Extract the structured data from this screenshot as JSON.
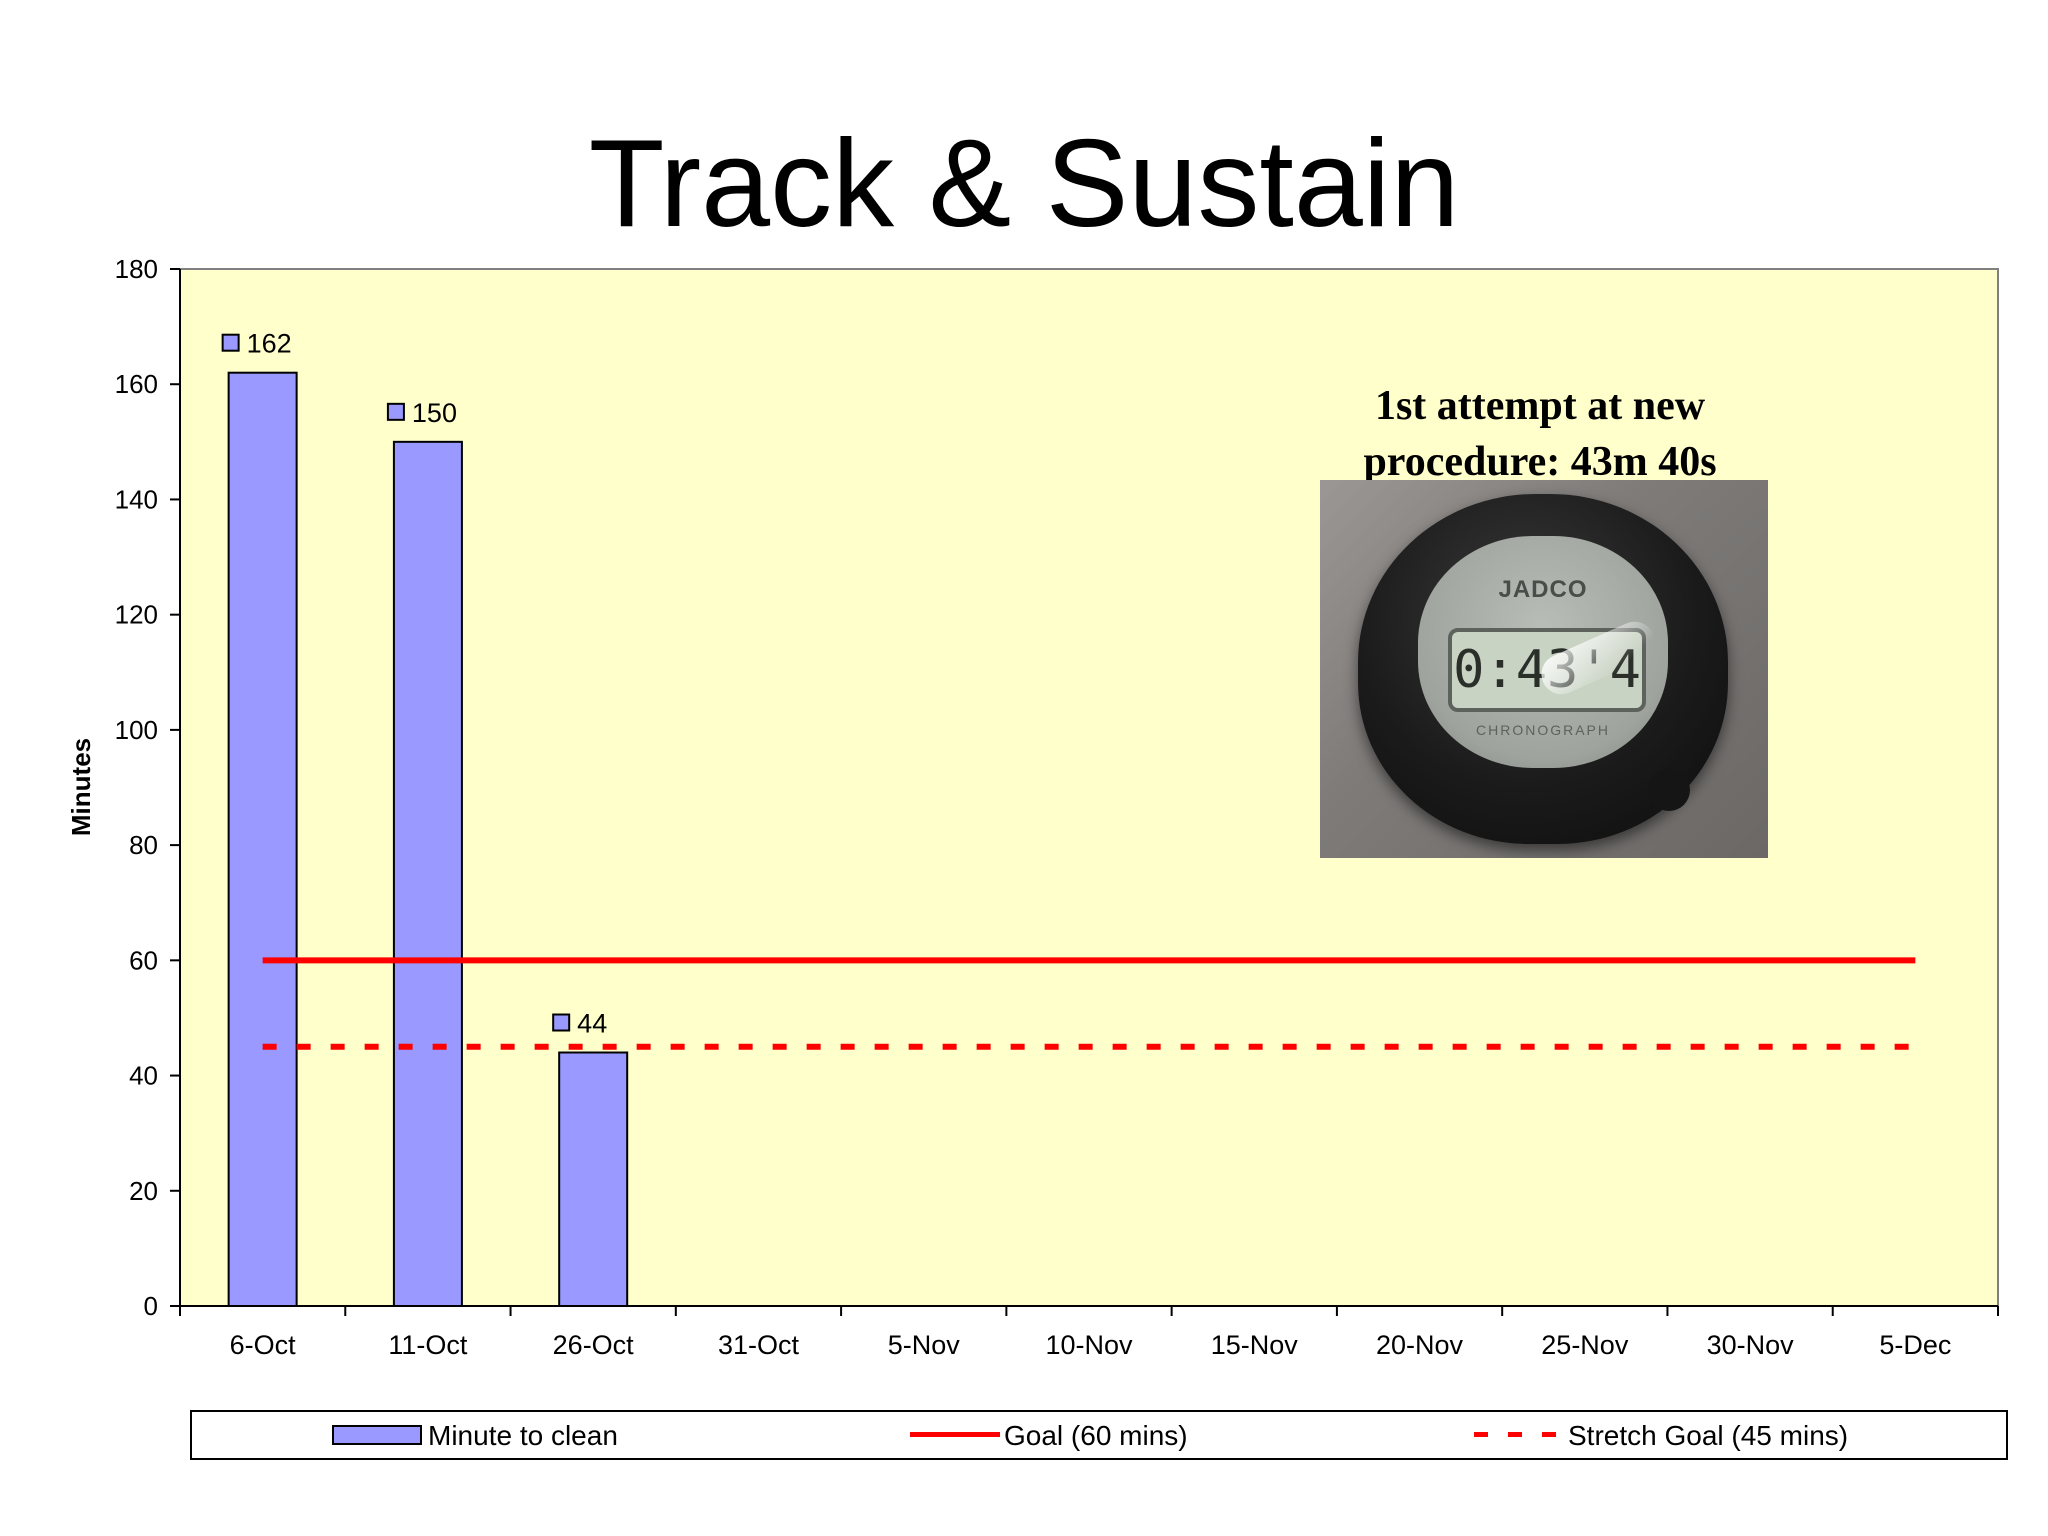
{
  "slide": {
    "title": "Track & Sustain"
  },
  "annotation": {
    "line1": "1st attempt at new",
    "line2": "procedure: 43m 40s"
  },
  "photo": {
    "brand": "JADCO",
    "readout": "0:43'4",
    "label": "CHRONOGRAPH"
  },
  "chart_data": {
    "type": "bar",
    "title": "",
    "ylabel": "Minutes",
    "xlabel": "",
    "ylim": [
      0,
      180
    ],
    "yticks": [
      0,
      20,
      40,
      60,
      80,
      100,
      120,
      140,
      160,
      180
    ],
    "categories": [
      "6-Oct",
      "11-Oct",
      "26-Oct",
      "31-Oct",
      "5-Nov",
      "10-Nov",
      "15-Nov",
      "20-Nov",
      "25-Nov",
      "30-Nov",
      "5-Dec"
    ],
    "series": [
      {
        "name": "Minute to clean",
        "type": "bar",
        "values": [
          162,
          150,
          44,
          null,
          null,
          null,
          null,
          null,
          null,
          null,
          null
        ],
        "color": "#9999ff"
      }
    ],
    "reference_lines": [
      {
        "name": "Goal (60 mins)",
        "value": 60,
        "style": "solid",
        "color": "#ff0000"
      },
      {
        "name": "Stretch Goal (45 mins)",
        "value": 45,
        "style": "dashed",
        "color": "#ff0000"
      }
    ],
    "data_labels": [
      162,
      150,
      44
    ],
    "plot_background": "#ffffcc",
    "legend_position": "bottom",
    "grid": false
  }
}
